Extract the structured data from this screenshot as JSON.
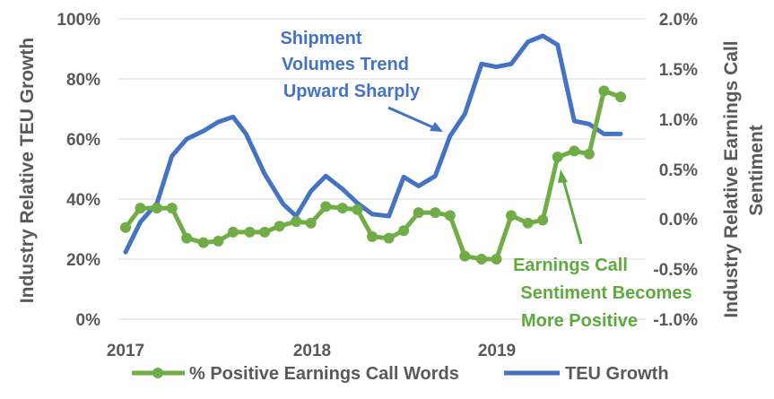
{
  "chart_data": {
    "type": "line",
    "x_tick_labels": [
      "2017",
      "2018",
      "2019"
    ],
    "left_axis": {
      "title": "Industry Relative TEU Growth",
      "ylim": [
        0,
        100
      ],
      "tick_labels": [
        "0%",
        "20%",
        "40%",
        "60%",
        "80%",
        "100%"
      ]
    },
    "right_axis": {
      "title_lines": [
        "Industry Relative Earnings Call",
        "Sentiment"
      ],
      "ylim": [
        -1.0,
        2.0
      ],
      "tick_labels": [
        "-1.0%",
        "-0.5%",
        "0.0%",
        "0.5%",
        "1.0%",
        "1.5%",
        "2.0%"
      ]
    },
    "series": [
      {
        "name": "% Positive Earnings Call Words",
        "axis": "left",
        "color": "#70AD47",
        "marker": "circle",
        "x": [
          2017.0,
          2017.08,
          2017.17,
          2017.25,
          2017.33,
          2017.42,
          2017.5,
          2017.58,
          2017.67,
          2017.75,
          2017.83,
          2017.92,
          2018.0,
          2018.08,
          2018.17,
          2018.25,
          2018.33,
          2018.42,
          2018.5,
          2018.58,
          2018.67,
          2018.75,
          2018.83,
          2018.92,
          2019.0,
          2019.08,
          2019.17,
          2019.25,
          2019.33,
          2019.42,
          2019.5,
          2019.58,
          2019.67
        ],
        "values": [
          30.5,
          37,
          37,
          37,
          27,
          25.5,
          26,
          29,
          29,
          29,
          31,
          32.5,
          32,
          37.5,
          37,
          36.5,
          27.5,
          27,
          29.5,
          35.5,
          35.5,
          34.5,
          21,
          20,
          20,
          34.5,
          32,
          33,
          54,
          56,
          55,
          76,
          74
        ]
      },
      {
        "name": "TEU Growth",
        "axis": "right",
        "color": "#4472C4",
        "marker": "none",
        "x": [
          2017.0,
          2017.08,
          2017.17,
          2017.25,
          2017.33,
          2017.42,
          2017.5,
          2017.58,
          2017.65,
          2017.75,
          2017.85,
          2017.92,
          2018.0,
          2018.08,
          2018.17,
          2018.25,
          2018.33,
          2018.42,
          2018.5,
          2018.58,
          2018.67,
          2018.75,
          2018.83,
          2018.92,
          2019.0,
          2019.08,
          2019.17,
          2019.25,
          2019.33,
          2019.42,
          2019.5,
          2019.58,
          2019.67
        ],
        "values": [
          -0.33,
          -0.03,
          0.16,
          0.63,
          0.8,
          0.88,
          0.97,
          1.02,
          0.85,
          0.45,
          0.15,
          0.03,
          0.28,
          0.43,
          0.3,
          0.16,
          0.05,
          0.03,
          0.42,
          0.33,
          0.43,
          0.83,
          1.05,
          1.55,
          1.52,
          1.55,
          1.77,
          1.83,
          1.74,
          0.98,
          0.95,
          0.85,
          0.85
        ]
      }
    ],
    "annotations": [
      {
        "lines": [
          "Shipment",
          "Volumes Trend",
          "Upward Sharply"
        ],
        "color": "#4472C4"
      },
      {
        "lines": [
          "Earnings Call",
          "Sentiment Becomes",
          "More Positive"
        ],
        "color": "#5FAA3C"
      }
    ],
    "legend_position": "bottom",
    "grid": "horizontal"
  }
}
